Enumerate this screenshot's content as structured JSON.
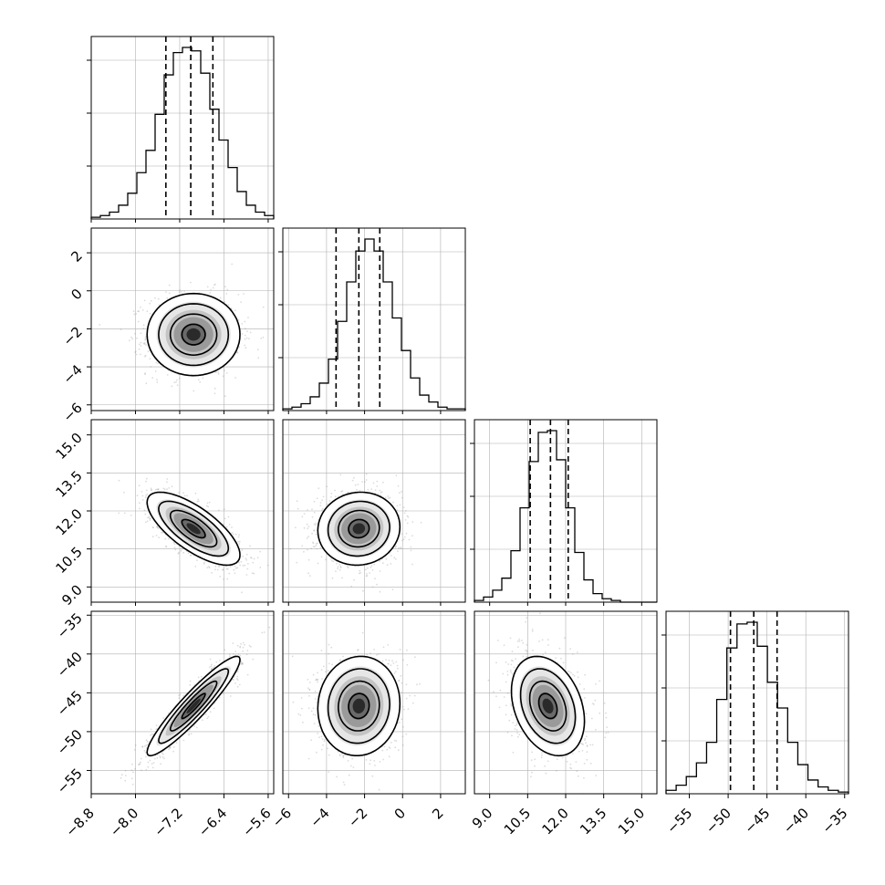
{
  "chart_data": {
    "type": "corner",
    "grid": true,
    "parameters": [
      {
        "range": [
          -8.8,
          -5.5
        ],
        "ticks": [
          -8.8,
          -8.0,
          -7.2,
          -6.4,
          -5.6
        ],
        "tick_labels": [
          "−8.8",
          "−8.0",
          "−7.2",
          "−6.4",
          "−5.6"
        ],
        "quantiles": [
          -7.45,
          -7.0,
          -6.6
        ],
        "hist": [
          0.01,
          0.02,
          0.04,
          0.08,
          0.15,
          0.27,
          0.4,
          0.61,
          0.84,
          0.97,
          1.0,
          0.98,
          0.85,
          0.64,
          0.46,
          0.3,
          0.16,
          0.08,
          0.04,
          0.02
        ]
      },
      {
        "range": [
          -6.3,
          3.3
        ],
        "ticks": [
          -6,
          -4,
          -2,
          0,
          2
        ],
        "tick_labels": [
          "−6",
          "−4",
          "−2",
          "0",
          "2"
        ],
        "quantiles": [
          -3.5,
          -2.3,
          -1.2
        ],
        "hist": [
          0.01,
          0.02,
          0.04,
          0.08,
          0.16,
          0.3,
          0.52,
          0.75,
          0.93,
          1.0,
          0.93,
          0.75,
          0.54,
          0.35,
          0.19,
          0.09,
          0.05,
          0.02,
          0.01,
          0.01
        ]
      },
      {
        "range": [
          8.4,
          15.6
        ],
        "ticks": [
          9.0,
          10.5,
          12.0,
          13.5,
          15.0
        ],
        "tick_labels": [
          "9.0",
          "10.5",
          "12.0",
          "13.5",
          "15.0"
        ],
        "quantiles": [
          10.6,
          11.4,
          12.1
        ],
        "hist": [
          0.01,
          0.03,
          0.07,
          0.14,
          0.3,
          0.55,
          0.82,
          0.99,
          1.0,
          0.83,
          0.55,
          0.29,
          0.13,
          0.05,
          0.02,
          0.01,
          0.0,
          0.0,
          0.0,
          0.0
        ]
      },
      {
        "range": [
          -58.0,
          -34.5
        ],
        "ticks": [
          -55,
          -50,
          -45,
          -40,
          -35
        ],
        "tick_labels": [
          "−55",
          "−50",
          "−45",
          "−40",
          "−35"
        ],
        "quantiles": [
          -49.7,
          -46.7,
          -43.7
        ],
        "hist": [
          0.02,
          0.05,
          0.1,
          0.18,
          0.3,
          0.55,
          0.85,
          0.99,
          1.0,
          0.86,
          0.65,
          0.5,
          0.3,
          0.17,
          0.08,
          0.04,
          0.02,
          0.01
        ]
      }
    ],
    "panels_2d": [
      {
        "x": 0,
        "y": 1,
        "mean": [
          -6.95,
          -2.3
        ],
        "sd": [
          0.42,
          1.08
        ],
        "rho": 0.0
      },
      {
        "x": 0,
        "y": 2,
        "mean": [
          -6.95,
          11.3
        ],
        "sd": [
          0.42,
          0.72
        ],
        "rho": -0.72
      },
      {
        "x": 1,
        "y": 2,
        "mean": [
          -2.3,
          11.3
        ],
        "sd": [
          1.08,
          0.72
        ],
        "rho": 0.05
      },
      {
        "x": 0,
        "y": 3,
        "mean": [
          -6.95,
          -46.7
        ],
        "sd": [
          0.42,
          3.2
        ],
        "rho": 0.93
      },
      {
        "x": 1,
        "y": 3,
        "mean": [
          -2.3,
          -46.7
        ],
        "sd": [
          1.08,
          3.2
        ],
        "rho": 0.05
      },
      {
        "x": 2,
        "y": 3,
        "mean": [
          11.3,
          -46.7
        ],
        "sd": [
          0.72,
          3.2
        ],
        "rho": -0.3
      }
    ],
    "contour_levels_sigma": [
      0.5,
      1.0,
      1.5,
      2.0
    ],
    "colors": {
      "line": "#000000",
      "grid": "#b0b0b0",
      "points": "#9a9a9a"
    }
  }
}
